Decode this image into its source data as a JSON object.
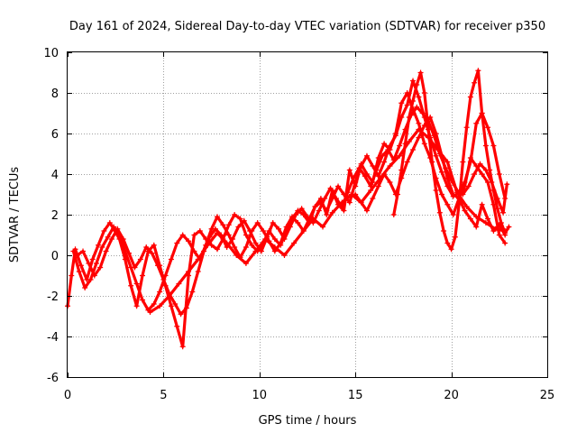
{
  "chart_data": {
    "type": "scatter",
    "title": "Day 161 of 2024, Sidereal Day-to-day VTEC variation (SDTVAR) for receiver p350",
    "xlabel": "GPS time / hours",
    "ylabel": "SDTVAR / TECUs",
    "xlim": [
      0,
      25
    ],
    "ylim": [
      -6,
      10
    ],
    "xticks": [
      "0",
      "5",
      "10",
      "15",
      "20",
      "25"
    ],
    "yticks": [
      "-6",
      "-4",
      "-2",
      "0",
      "2",
      "4",
      "6",
      "8",
      "10"
    ],
    "grid": true,
    "marker": "+",
    "color": "#ff0000",
    "series": [
      {
        "x": [
          0.0,
          0.2,
          0.4,
          0.7,
          1.0,
          1.3,
          1.6,
          1.9,
          2.2,
          2.4,
          2.7,
          3.0,
          3.3,
          3.6,
          3.9,
          4.2,
          4.5,
          4.8,
          5.1,
          5.4,
          5.7,
          6.0,
          6.3,
          6.6,
          6.9,
          7.2,
          7.5,
          7.8,
          8.1,
          8.4,
          8.7,
          9.0,
          9.3,
          9.6,
          9.9,
          10.2,
          10.5,
          10.8,
          11.1,
          11.4,
          11.7,
          12.0,
          12.3,
          12.6,
          12.9,
          13.2,
          13.5,
          13.8,
          14.1,
          14.4,
          14.7,
          15.0,
          15.3,
          15.6,
          15.9,
          16.2,
          16.5,
          16.8,
          17.1,
          17.4,
          17.7,
          18.0,
          18.3,
          18.6,
          18.9,
          19.2,
          19.5,
          19.8,
          20.1,
          20.4,
          20.7,
          21.0,
          21.3,
          21.6,
          21.9,
          22.2,
          22.5,
          22.8
        ],
        "y": [
          -2.5,
          -1.0,
          0.3,
          -0.5,
          -1.2,
          -0.2,
          0.5,
          1.2,
          1.6,
          1.3,
          0.8,
          -0.2,
          -1.5,
          -2.5,
          -1.0,
          0.2,
          0.5,
          -0.5,
          -1.5,
          -2.5,
          -3.5,
          -4.5,
          -1.0,
          1.0,
          1.2,
          0.8,
          0.5,
          0.3,
          0.8,
          1.5,
          2.0,
          1.8,
          1.0,
          0.5,
          0.2,
          0.6,
          1.2,
          0.8,
          0.5,
          1.2,
          1.8,
          2.2,
          2.0,
          1.6,
          2.4,
          2.8,
          2.0,
          3.2,
          2.5,
          2.2,
          4.2,
          3.4,
          4.5,
          4.0,
          3.6,
          4.8,
          5.5,
          5.2,
          6.0,
          7.5,
          8.0,
          7.2,
          6.5,
          5.5,
          4.8,
          3.8,
          3.0,
          2.5,
          2.0,
          2.8,
          2.2,
          1.8,
          1.4,
          2.5,
          1.8,
          1.2,
          1.5,
          1.0
        ]
      },
      {
        "x": [
          0.3,
          0.6,
          0.9,
          1.2,
          1.5,
          1.8,
          2.1,
          2.4,
          2.7,
          3.0,
          3.3,
          3.6,
          3.9,
          4.2,
          4.5,
          4.8,
          5.1,
          5.4,
          5.7,
          6.0,
          6.3,
          6.6,
          6.9,
          7.2,
          7.5,
          7.8,
          8.1,
          8.4,
          8.7,
          9.0,
          9.3,
          9.6,
          9.9,
          10.2,
          10.5,
          10.8,
          11.1,
          11.4,
          11.7,
          12.0,
          12.3,
          12.6,
          12.9,
          13.2,
          13.5,
          13.8,
          14.1,
          14.4,
          14.7,
          15.0,
          15.3,
          15.6,
          15.9,
          16.2,
          16.5,
          16.8,
          17.1,
          17.4,
          17.7,
          18.0,
          18.3,
          18.6,
          18.9,
          19.2,
          19.5,
          19.8,
          20.1,
          20.4,
          20.7,
          21.0,
          21.3,
          21.6,
          21.9,
          22.2,
          22.5,
          22.8
        ],
        "y": [
          0.2,
          -0.8,
          -1.6,
          -1.2,
          -0.4,
          0.4,
          0.9,
          1.4,
          1.0,
          0.2,
          -0.6,
          -1.4,
          -2.2,
          -2.7,
          -2.4,
          -1.8,
          -1.0,
          -0.2,
          0.6,
          1.0,
          0.7,
          0.2,
          -0.2,
          0.5,
          1.3,
          1.9,
          1.5,
          1.0,
          0.4,
          -0.1,
          0.4,
          1.2,
          1.6,
          1.2,
          0.7,
          0.2,
          0.6,
          1.4,
          1.9,
          1.6,
          1.2,
          1.8,
          2.4,
          2.6,
          2.2,
          2.8,
          3.4,
          3.0,
          2.6,
          3.6,
          4.4,
          4.9,
          4.4,
          3.9,
          4.6,
          5.4,
          5.9,
          6.8,
          7.4,
          8.6,
          7.8,
          6.8,
          5.8,
          4.9,
          4.1,
          3.4,
          2.9,
          3.1,
          3.6,
          4.6,
          6.5,
          7.0,
          6.3,
          5.4,
          4.0,
          2.8
        ]
      },
      {
        "x": [
          0.5,
          0.8,
          1.1,
          1.4,
          1.7,
          2.0,
          2.3,
          2.6,
          2.9,
          3.2,
          3.5,
          3.8,
          4.1,
          4.4,
          4.7,
          5.0,
          5.3,
          5.6,
          5.9,
          6.2,
          6.5,
          6.8,
          7.1,
          7.4,
          7.7,
          8.0,
          8.3,
          8.6,
          8.9,
          9.2,
          9.5,
          9.8,
          10.1,
          10.4,
          10.7,
          11.0,
          11.3,
          11.6,
          11.9,
          12.2,
          12.5,
          12.8,
          13.1,
          13.4,
          13.7,
          14.0,
          14.3,
          14.6,
          14.9,
          15.2,
          15.5,
          15.8,
          16.1,
          16.4,
          16.7,
          17.0,
          17.3,
          17.6,
          17.9,
          18.2,
          18.5,
          18.8,
          19.1,
          19.4,
          19.7,
          20.0,
          20.3,
          20.6,
          20.9,
          21.2,
          21.5,
          21.8,
          22.1,
          22.4,
          22.7,
          22.9
        ],
        "y": [
          0.0,
          0.2,
          -0.4,
          -1.0,
          -0.6,
          0.2,
          0.8,
          1.3,
          0.8,
          0.1,
          -0.6,
          -0.2,
          0.4,
          0.1,
          -0.5,
          -1.2,
          -1.9,
          -2.4,
          -2.9,
          -2.6,
          -1.8,
          -0.8,
          0.2,
          0.9,
          1.3,
          1.0,
          0.4,
          0.8,
          1.4,
          1.7,
          1.2,
          0.6,
          0.2,
          0.9,
          1.6,
          1.3,
          0.8,
          1.4,
          2.0,
          2.3,
          1.9,
          1.6,
          2.2,
          2.8,
          3.3,
          2.8,
          2.4,
          3.1,
          3.8,
          4.3,
          3.9,
          3.4,
          4.2,
          4.9,
          5.2,
          4.7,
          5.4,
          6.2,
          6.9,
          7.3,
          7.0,
          6.6,
          5.9,
          5.0,
          4.3,
          3.7,
          3.2,
          3.0,
          3.4,
          4.0,
          4.5,
          4.2,
          3.6,
          2.8,
          2.1,
          3.5
        ]
      },
      {
        "x": [
          4.3,
          4.8,
          5.3,
          5.8,
          6.3,
          6.8,
          7.3,
          7.8,
          8.3,
          8.8,
          9.3,
          9.8,
          10.3,
          10.8,
          11.3,
          11.8,
          12.3,
          12.8,
          13.3,
          13.8,
          14.3,
          14.8,
          15.3,
          15.8,
          16.3,
          16.8,
          17.3,
          17.8,
          18.3,
          18.8,
          19.3,
          19.8,
          20.3,
          20.8,
          21.3,
          21.8,
          22.3,
          22.8
        ],
        "y": [
          -2.8,
          -2.5,
          -2.0,
          -1.4,
          -0.8,
          -0.2,
          0.5,
          1.1,
          0.6,
          0.0,
          -0.4,
          0.2,
          0.8,
          0.4,
          0.0,
          0.6,
          1.2,
          1.8,
          1.4,
          2.1,
          2.6,
          3.0,
          2.6,
          3.2,
          3.8,
          4.4,
          4.9,
          5.6,
          6.2,
          5.8,
          5.2,
          4.6,
          3.1,
          2.4,
          1.9,
          1.6,
          1.3,
          1.2
        ]
      },
      {
        "x": [
          17.0,
          17.2,
          17.4,
          17.6,
          17.8,
          18.0,
          18.2,
          18.4,
          18.6,
          18.8,
          19.0,
          19.2,
          19.4,
          19.6,
          19.8,
          20.0,
          20.2,
          20.4,
          20.6,
          20.8,
          21.0,
          21.2,
          21.4,
          21.6,
          21.8,
          22.0,
          22.2,
          22.4,
          22.6,
          22.8,
          23.0
        ],
        "y": [
          2.0,
          3.0,
          4.2,
          5.5,
          6.8,
          7.6,
          8.4,
          9.0,
          8.0,
          6.2,
          4.6,
          3.2,
          2.1,
          1.2,
          0.6,
          0.3,
          0.9,
          2.5,
          4.6,
          6.3,
          7.8,
          8.5,
          9.1,
          7.0,
          5.4,
          4.2,
          3.2,
          2.3,
          1.6,
          1.1,
          1.4
        ]
      },
      {
        "x": [
          15.0,
          15.3,
          15.6,
          15.9,
          16.2,
          16.5,
          16.8,
          17.1,
          17.4,
          17.7,
          18.0,
          18.3,
          18.6,
          18.9,
          19.2,
          19.5,
          19.8,
          20.1,
          20.4,
          20.7,
          21.0,
          21.3,
          21.6,
          21.9,
          22.2,
          22.5,
          22.8
        ],
        "y": [
          3.0,
          2.6,
          2.2,
          2.8,
          3.4,
          4.0,
          3.6,
          3.0,
          3.8,
          4.6,
          5.2,
          5.8,
          6.4,
          6.8,
          6.0,
          4.9,
          3.8,
          3.0,
          2.8,
          3.4,
          4.8,
          4.4,
          4.0,
          3.6,
          2.5,
          1.0,
          0.6
        ]
      }
    ]
  }
}
